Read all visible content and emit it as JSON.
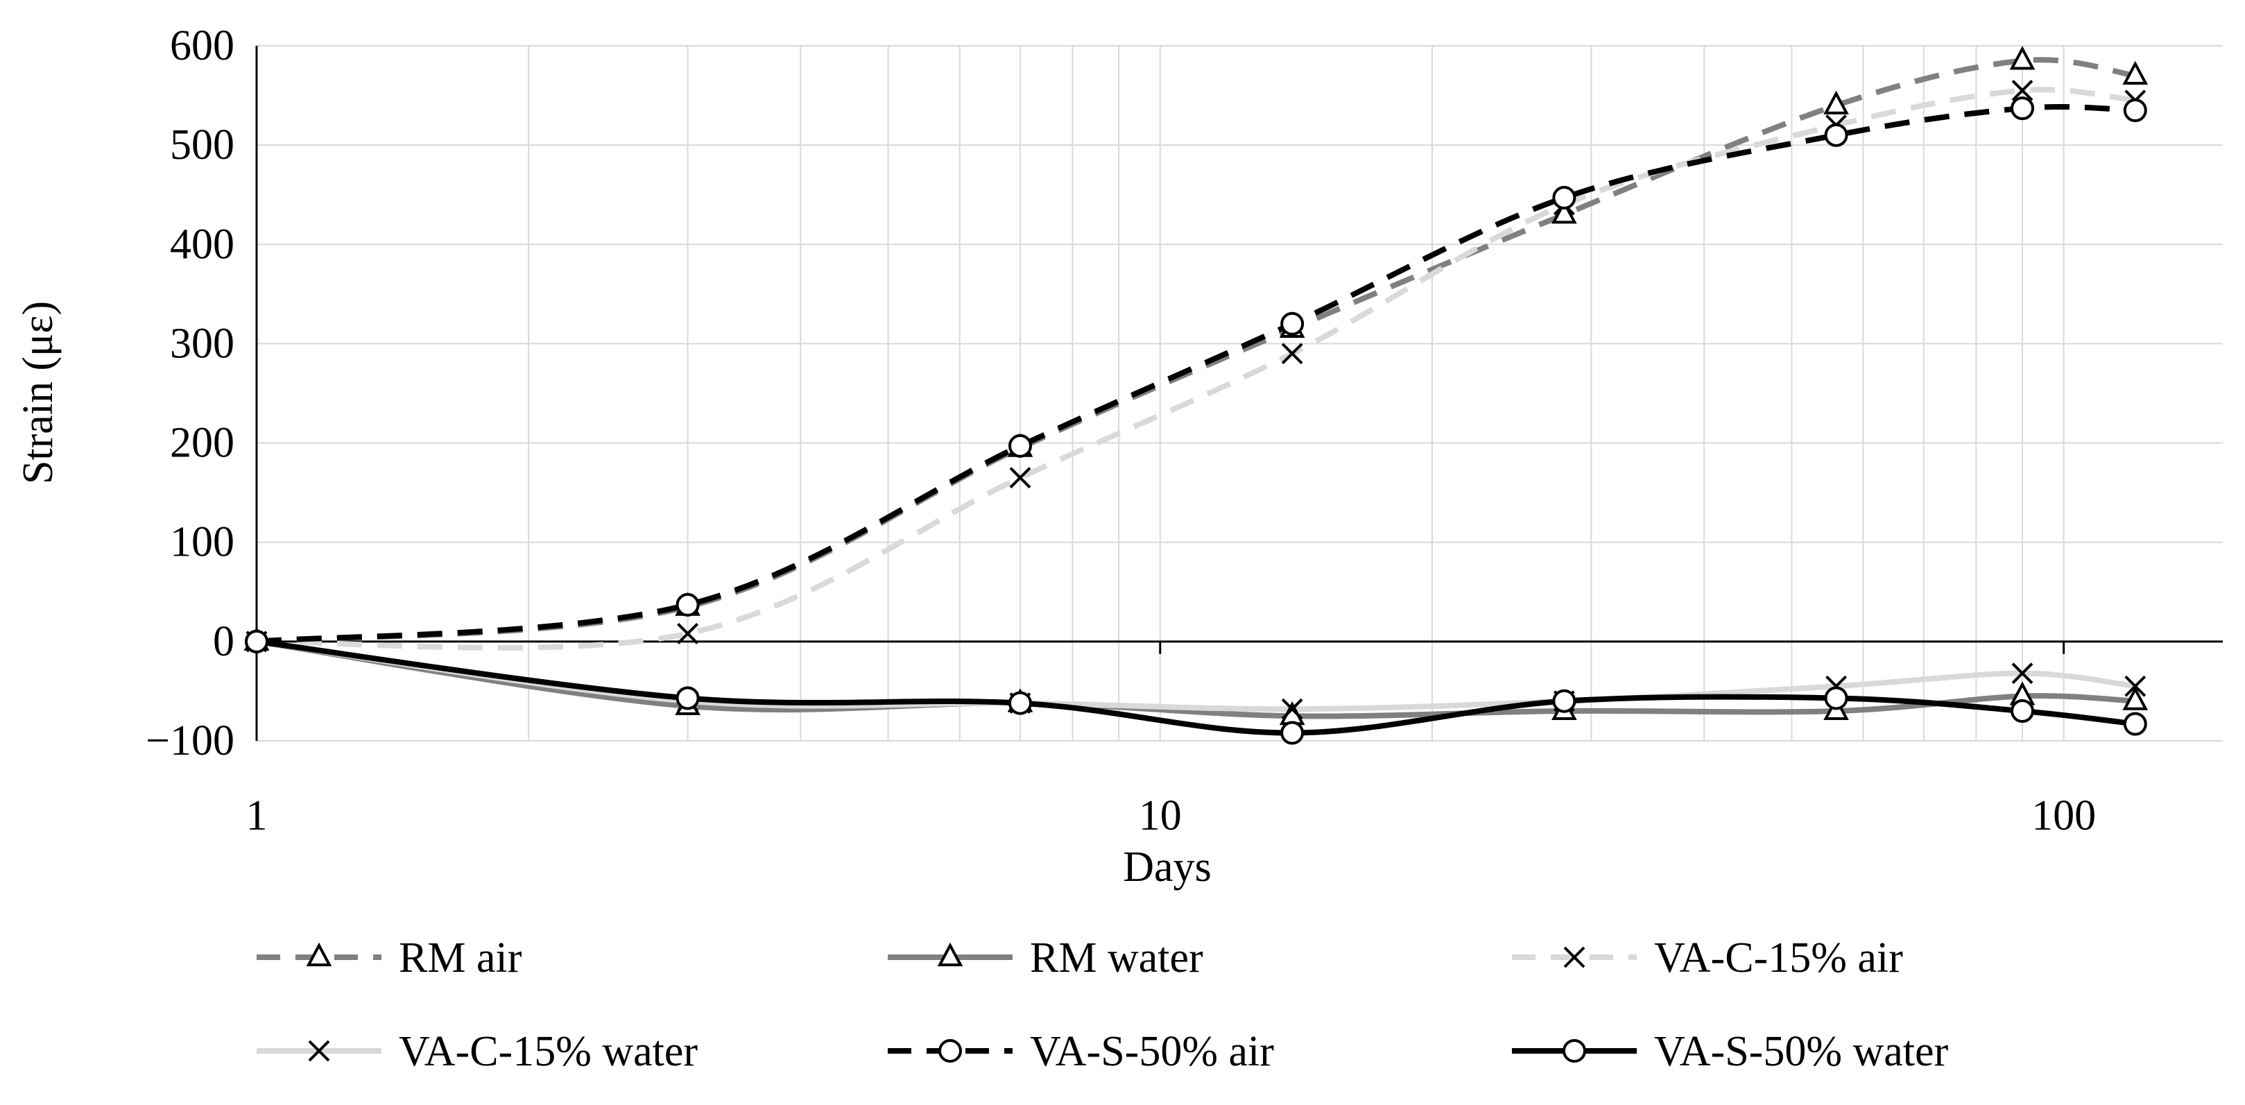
{
  "chart_data": {
    "type": "line",
    "title": "",
    "xlabel": "Days",
    "ylabel": "Strain (με)",
    "xscale": "log",
    "xlim": [
      1,
      150
    ],
    "ylim": [
      -100,
      600
    ],
    "xticks": [
      1,
      10,
      100
    ],
    "yticks": [
      -100,
      0,
      100,
      200,
      300,
      400,
      500,
      600
    ],
    "grid": true,
    "legend_position": "bottom",
    "x": [
      1,
      3,
      7,
      14,
      28,
      56,
      90,
      120
    ],
    "series": [
      {
        "name": "RM air",
        "values": [
          0,
          35,
          195,
          315,
          430,
          540,
          585,
          570
        ],
        "color": "#808080",
        "dash": "dashed",
        "marker": "triangle"
      },
      {
        "name": "RM water",
        "values": [
          0,
          -65,
          -62,
          -75,
          -70,
          -70,
          -55,
          -60
        ],
        "color": "#808080",
        "dash": "solid",
        "marker": "triangle"
      },
      {
        "name": "VA-C-15% air",
        "values": [
          0,
          8,
          165,
          290,
          440,
          520,
          555,
          545
        ],
        "color": "#d9d9d9",
        "dash": "dashed",
        "marker": "x"
      },
      {
        "name": "VA-C-15% water",
        "values": [
          0,
          -60,
          -62,
          -68,
          -60,
          -45,
          -32,
          -45
        ],
        "color": "#d9d9d9",
        "dash": "solid",
        "marker": "x"
      },
      {
        "name": "VA-S-50% air",
        "values": [
          0,
          37,
          197,
          320,
          447,
          510,
          537,
          535
        ],
        "color": "#000000",
        "dash": "dashed",
        "marker": "circle"
      },
      {
        "name": "VA-S-50% water",
        "values": [
          0,
          -57,
          -62,
          -92,
          -60,
          -57,
          -70,
          -83
        ],
        "color": "#000000",
        "dash": "solid",
        "marker": "circle"
      }
    ]
  }
}
